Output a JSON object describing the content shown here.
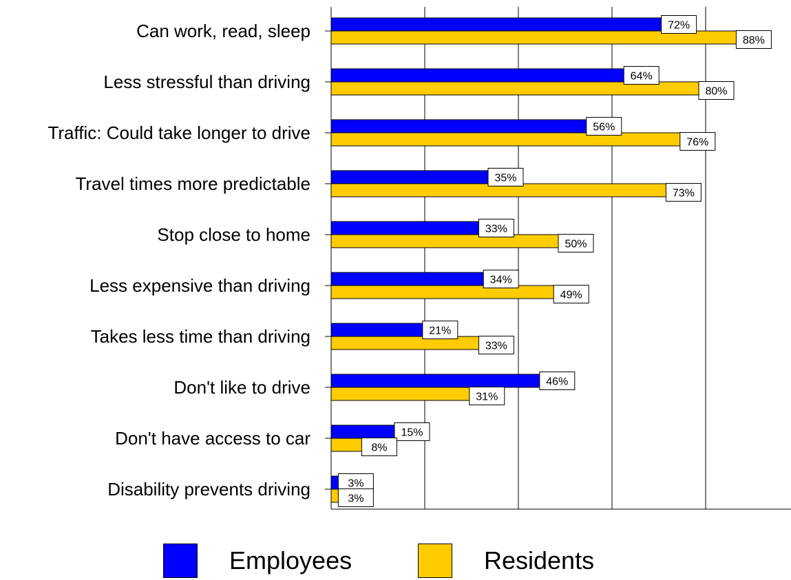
{
  "chart_data": {
    "type": "bar",
    "orientation": "horizontal",
    "categories": [
      "Can work, read, sleep",
      "Less stressful than driving",
      "Traffic: Could take longer to drive",
      "Travel times more predictable",
      "Stop close to home",
      "Less expensive than driving",
      "Takes less time than driving",
      "Don't like to drive",
      "Don't have access to car",
      "Disability prevents driving"
    ],
    "series": [
      {
        "name": "Employees",
        "color": "#0000FF",
        "values": [
          72,
          64,
          56,
          35,
          33,
          34,
          21,
          46,
          15,
          3
        ],
        "labels": [
          "72%",
          "64%",
          "56%",
          "35%",
          "33%",
          "34%",
          "21%",
          "46%",
          "15%",
          "3%"
        ]
      },
      {
        "name": "Residents",
        "color": "#FFCC00",
        "values": [
          88,
          80,
          76,
          73,
          50,
          49,
          33,
          31,
          8,
          3
        ],
        "labels": [
          "88%",
          "80%",
          "76%",
          "73%",
          "50%",
          "49%",
          "33%",
          "31%",
          "8%",
          "3%"
        ]
      }
    ],
    "xlim": [
      0,
      100
    ],
    "grid": true,
    "legend": "bottom"
  }
}
